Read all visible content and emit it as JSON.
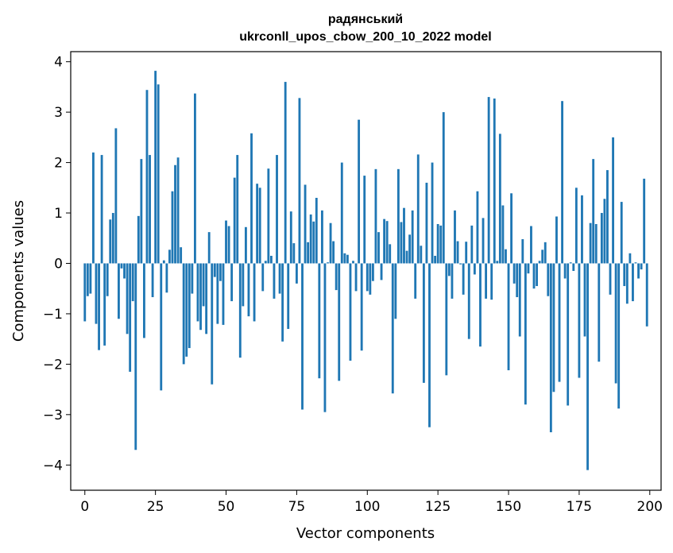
{
  "chart_data": {
    "type": "bar",
    "title_line1": "радянський",
    "title_line2": "ukrconll_upos_cbow_200_10_2022 model",
    "xlabel": "Vector components",
    "ylabel": "Components values",
    "xlim": [
      -5,
      204
    ],
    "ylim": [
      -4.5,
      4.2
    ],
    "xticks": [
      0,
      25,
      50,
      75,
      100,
      125,
      150,
      175,
      200
    ],
    "xtick_labels": [
      "0",
      "25",
      "50",
      "75",
      "100",
      "125",
      "150",
      "175",
      "200"
    ],
    "yticks": [
      -4,
      -3,
      -2,
      -1,
      0,
      1,
      2,
      3,
      4
    ],
    "ytick_labels": [
      "−4",
      "−3",
      "−2",
      "−1",
      "0",
      "1",
      "2",
      "3",
      "4"
    ],
    "bar_color": "#1f77b4",
    "grid": false,
    "legend": "none",
    "values": [
      -1.15,
      -0.65,
      -0.6,
      2.2,
      -1.2,
      -1.72,
      2.15,
      -1.63,
      -0.65,
      0.87,
      1.0,
      2.68,
      -1.1,
      -0.1,
      -0.3,
      -1.4,
      -2.15,
      -0.75,
      -3.7,
      0.94,
      2.07,
      -1.48,
      3.44,
      2.15,
      -0.67,
      3.82,
      3.55,
      -2.52,
      0.06,
      -0.58,
      0.27,
      1.43,
      1.95,
      2.1,
      0.32,
      -2.0,
      -1.85,
      -1.68,
      -0.6,
      3.37,
      -1.15,
      -1.32,
      -0.85,
      -1.4,
      0.62,
      -2.4,
      -0.27,
      -1.2,
      -0.35,
      -1.22,
      0.85,
      0.74,
      -0.75,
      1.7,
      2.15,
      -1.87,
      -0.85,
      0.72,
      -1.05,
      2.58,
      -1.15,
      1.58,
      1.5,
      -0.55,
      0.05,
      1.88,
      0.15,
      -0.7,
      2.15,
      -0.6,
      -1.55,
      3.6,
      -1.3,
      1.03,
      0.4,
      -0.4,
      3.28,
      -2.9,
      1.56,
      0.42,
      0.97,
      0.83,
      1.3,
      -2.28,
      1.05,
      -2.95,
      0.02,
      0.8,
      0.44,
      -0.53,
      -2.33,
      2.0,
      0.2,
      0.17,
      -1.93,
      0.05,
      -0.55,
      2.85,
      -1.73,
      1.74,
      -0.55,
      -0.62,
      -0.35,
      1.87,
      0.62,
      -0.33,
      0.88,
      0.84,
      0.38,
      -2.58,
      -1.1,
      1.87,
      0.82,
      1.1,
      0.25,
      0.57,
      1.05,
      -0.7,
      2.16,
      0.35,
      -2.37,
      1.6,
      -3.25,
      2.0,
      0.15,
      0.78,
      0.75,
      3.0,
      -2.22,
      -0.25,
      -0.7,
      1.05,
      0.44,
      -0.02,
      -0.62,
      0.43,
      -1.5,
      0.75,
      -0.22,
      1.43,
      -1.65,
      0.9,
      -0.7,
      3.3,
      -0.72,
      3.27,
      0.05,
      2.57,
      1.15,
      0.28,
      -2.12,
      1.39,
      -0.4,
      -0.67,
      -1.45,
      0.48,
      -2.8,
      -0.2,
      0.74,
      -0.5,
      -0.45,
      0.05,
      0.27,
      0.42,
      -0.65,
      -3.35,
      -2.55,
      0.93,
      -2.35,
      3.22,
      -0.3,
      -2.82,
      0.02,
      -0.15,
      1.5,
      -2.27,
      1.35,
      -1.45,
      -4.1,
      0.8,
      2.07,
      0.78,
      -1.95,
      1.0,
      1.28,
      1.85,
      -0.62,
      2.5,
      -2.38,
      -2.88,
      1.22,
      -0.45,
      -0.8,
      0.2,
      -0.75,
      0.02,
      -0.3,
      -0.12,
      1.68,
      -1.25
    ]
  }
}
